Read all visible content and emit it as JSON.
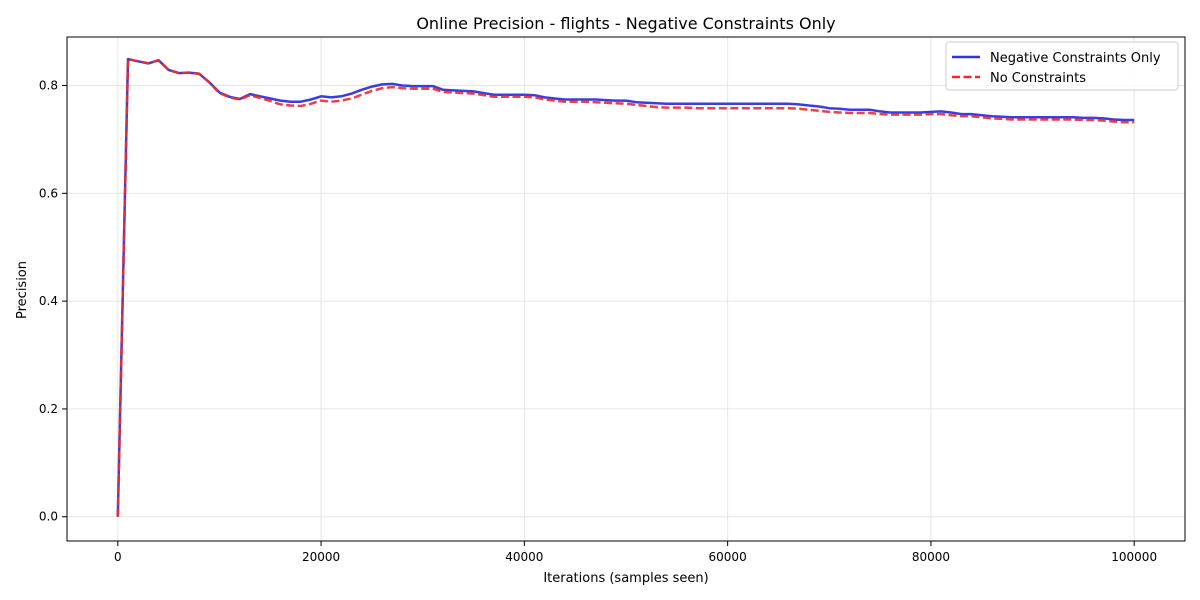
{
  "chart_data": {
    "type": "line",
    "title": "Online Precision - flights - Negative Constraints Only",
    "xlabel": "Iterations (samples seen)",
    "ylabel": "Precision",
    "xlim": [
      -5000,
      105000
    ],
    "ylim": [
      -0.045,
      0.89
    ],
    "xticks": [
      0,
      20000,
      40000,
      60000,
      80000,
      100000
    ],
    "xtick_labels": [
      "0",
      "20000",
      "40000",
      "60000",
      "80000",
      "100000"
    ],
    "yticks": [
      0.0,
      0.2,
      0.4,
      0.6,
      0.8
    ],
    "ytick_labels": [
      "0.0",
      "0.2",
      "0.4",
      "0.6",
      "0.8"
    ],
    "grid": true,
    "legend_position": "top-right",
    "series": [
      {
        "name": "Negative Constraints Only",
        "color": "#3333dd",
        "style": "solid",
        "x": [
          0,
          1000,
          2000,
          3000,
          4000,
          5000,
          6000,
          7000,
          8000,
          9000,
          10000,
          11000,
          12000,
          13000,
          14000,
          15000,
          16000,
          17000,
          18000,
          19000,
          20000,
          21000,
          22000,
          23000,
          24000,
          25000,
          26000,
          27000,
          28000,
          29000,
          30000,
          31000,
          32000,
          33000,
          34000,
          35000,
          36000,
          37000,
          38000,
          39000,
          40000,
          41000,
          42000,
          43000,
          44000,
          45000,
          46000,
          47000,
          48000,
          49000,
          50000,
          51000,
          52000,
          53000,
          54000,
          55000,
          56000,
          57000,
          58000,
          59000,
          60000,
          61000,
          62000,
          63000,
          64000,
          65000,
          66000,
          67000,
          68000,
          69000,
          70000,
          71000,
          72000,
          73000,
          74000,
          75000,
          76000,
          77000,
          78000,
          79000,
          80000,
          81000,
          82000,
          83000,
          84000,
          85000,
          86000,
          87000,
          88000,
          89000,
          90000,
          91000,
          92000,
          93000,
          94000,
          95000,
          96000,
          97000,
          98000,
          99000,
          100000
        ],
        "y": [
          0.0,
          0.849,
          0.845,
          0.841,
          0.847,
          0.829,
          0.823,
          0.824,
          0.822,
          0.806,
          0.787,
          0.779,
          0.775,
          0.784,
          0.78,
          0.776,
          0.772,
          0.77,
          0.77,
          0.774,
          0.78,
          0.778,
          0.78,
          0.785,
          0.792,
          0.798,
          0.802,
          0.803,
          0.8,
          0.799,
          0.799,
          0.799,
          0.792,
          0.791,
          0.79,
          0.789,
          0.786,
          0.783,
          0.783,
          0.783,
          0.783,
          0.782,
          0.778,
          0.776,
          0.774,
          0.774,
          0.774,
          0.774,
          0.773,
          0.772,
          0.772,
          0.769,
          0.768,
          0.767,
          0.766,
          0.766,
          0.766,
          0.766,
          0.766,
          0.766,
          0.766,
          0.766,
          0.766,
          0.766,
          0.766,
          0.766,
          0.766,
          0.765,
          0.763,
          0.761,
          0.758,
          0.757,
          0.755,
          0.755,
          0.755,
          0.752,
          0.75,
          0.75,
          0.75,
          0.75,
          0.751,
          0.752,
          0.75,
          0.747,
          0.747,
          0.745,
          0.743,
          0.742,
          0.741,
          0.741,
          0.741,
          0.741,
          0.741,
          0.741,
          0.741,
          0.74,
          0.74,
          0.739,
          0.737,
          0.736,
          0.736
        ]
      },
      {
        "name": "No Constraints",
        "color": "#ee2a2a",
        "style": "dashed",
        "x": [
          0,
          1000,
          2000,
          3000,
          4000,
          5000,
          6000,
          7000,
          8000,
          9000,
          10000,
          11000,
          12000,
          13000,
          14000,
          15000,
          16000,
          17000,
          18000,
          19000,
          20000,
          21000,
          22000,
          23000,
          24000,
          25000,
          26000,
          27000,
          28000,
          29000,
          30000,
          31000,
          32000,
          33000,
          34000,
          35000,
          36000,
          37000,
          38000,
          39000,
          40000,
          41000,
          42000,
          43000,
          44000,
          45000,
          46000,
          47000,
          48000,
          49000,
          50000,
          51000,
          52000,
          53000,
          54000,
          55000,
          56000,
          57000,
          58000,
          59000,
          60000,
          61000,
          62000,
          63000,
          64000,
          65000,
          66000,
          67000,
          68000,
          69000,
          70000,
          71000,
          72000,
          73000,
          74000,
          75000,
          76000,
          77000,
          78000,
          79000,
          80000,
          81000,
          82000,
          83000,
          84000,
          85000,
          86000,
          87000,
          88000,
          89000,
          90000,
          91000,
          92000,
          93000,
          94000,
          95000,
          96000,
          97000,
          98000,
          99000,
          100000
        ],
        "y": [
          0.0,
          0.849,
          0.845,
          0.841,
          0.847,
          0.829,
          0.823,
          0.824,
          0.822,
          0.806,
          0.786,
          0.778,
          0.774,
          0.782,
          0.777,
          0.771,
          0.765,
          0.763,
          0.762,
          0.766,
          0.772,
          0.77,
          0.772,
          0.776,
          0.783,
          0.79,
          0.795,
          0.797,
          0.795,
          0.794,
          0.794,
          0.794,
          0.788,
          0.787,
          0.786,
          0.785,
          0.782,
          0.779,
          0.779,
          0.779,
          0.779,
          0.778,
          0.774,
          0.772,
          0.77,
          0.77,
          0.77,
          0.769,
          0.768,
          0.767,
          0.766,
          0.764,
          0.762,
          0.76,
          0.759,
          0.759,
          0.759,
          0.758,
          0.758,
          0.758,
          0.758,
          0.758,
          0.758,
          0.758,
          0.758,
          0.758,
          0.758,
          0.757,
          0.755,
          0.753,
          0.751,
          0.75,
          0.749,
          0.749,
          0.749,
          0.747,
          0.746,
          0.746,
          0.746,
          0.746,
          0.747,
          0.747,
          0.745,
          0.743,
          0.743,
          0.741,
          0.739,
          0.738,
          0.737,
          0.737,
          0.737,
          0.737,
          0.737,
          0.737,
          0.737,
          0.736,
          0.736,
          0.735,
          0.733,
          0.732,
          0.732
        ]
      }
    ]
  }
}
